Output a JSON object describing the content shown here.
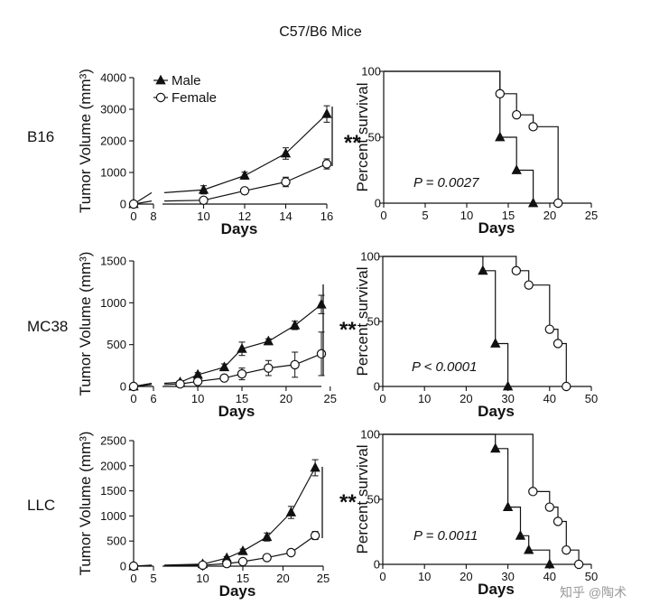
{
  "figure": {
    "title": "C57/B6 Mice",
    "watermark": "知乎 @陶术",
    "legend": [
      "Male",
      "Female"
    ]
  },
  "chart_data": [
    {
      "id": "B16-tumor",
      "type": "line",
      "row_label": "B16",
      "title": "",
      "xlabel": "Days",
      "ylabel": "Tumor Volume (mm³)",
      "break_after": 8,
      "x_ticks": [
        0,
        8,
        10,
        12,
        14,
        16
      ],
      "ylim": [
        0,
        4000
      ],
      "y_ticks": [
        0,
        1000,
        2000,
        3000,
        4000
      ],
      "significance": "**",
      "series": [
        {
          "name": "Male",
          "marker": "triangle",
          "points": [
            {
              "x": 0,
              "y": 0
            },
            {
              "x": 10,
              "y": 450
            },
            {
              "x": 12,
              "y": 900
            },
            {
              "x": 14,
              "y": 1600
            },
            {
              "x": 16,
              "y": 2850
            }
          ],
          "errors": [
            0,
            130,
            110,
            180,
            260
          ]
        },
        {
          "name": "Female",
          "marker": "circle",
          "points": [
            {
              "x": 0,
              "y": 0
            },
            {
              "x": 10,
              "y": 120
            },
            {
              "x": 12,
              "y": 420
            },
            {
              "x": 14,
              "y": 700
            },
            {
              "x": 16,
              "y": 1270
            }
          ],
          "errors": [
            0,
            40,
            60,
            150,
            160
          ]
        }
      ]
    },
    {
      "id": "B16-survival",
      "type": "line",
      "title": "",
      "xlabel": "Days",
      "ylabel": "Percent survival",
      "xlim": [
        0,
        25
      ],
      "x_ticks": [
        0,
        5,
        10,
        15,
        20,
        25
      ],
      "ylim": [
        0,
        100
      ],
      "y_ticks": [
        0,
        50,
        100
      ],
      "p_value": "P = 0.0027",
      "series": [
        {
          "name": "Male",
          "marker": "triangle",
          "steps": [
            [
              0,
              100
            ],
            [
              14,
              100
            ],
            [
              14,
              50
            ],
            [
              16,
              50
            ],
            [
              16,
              25
            ],
            [
              18,
              25
            ],
            [
              18,
              0
            ]
          ],
          "markers": [
            {
              "x": 14,
              "y": 50
            },
            {
              "x": 16,
              "y": 25
            },
            {
              "x": 18,
              "y": 0
            }
          ]
        },
        {
          "name": "Female",
          "marker": "circle",
          "steps": [
            [
              0,
              100
            ],
            [
              14,
              100
            ],
            [
              14,
              83
            ],
            [
              16,
              83
            ],
            [
              16,
              67
            ],
            [
              18,
              67
            ],
            [
              18,
              58
            ],
            [
              21,
              58
            ],
            [
              21,
              0
            ]
          ],
          "markers": [
            {
              "x": 14,
              "y": 83
            },
            {
              "x": 16,
              "y": 67
            },
            {
              "x": 18,
              "y": 58
            },
            {
              "x": 21,
              "y": 0
            }
          ]
        }
      ]
    },
    {
      "id": "MC38-tumor",
      "type": "line",
      "row_label": "MC38",
      "title": "",
      "xlabel": "Days",
      "ylabel": "Tumor Volume (mm³)",
      "break_after": 6,
      "x_ticks": [
        0,
        6,
        10,
        15,
        20,
        25
      ],
      "ylim": [
        0,
        1500
      ],
      "y_ticks": [
        0,
        500,
        1000,
        1500
      ],
      "significance": "**",
      "series": [
        {
          "name": "Male",
          "marker": "triangle",
          "points": [
            {
              "x": 0,
              "y": 0
            },
            {
              "x": 8,
              "y": 50
            },
            {
              "x": 10,
              "y": 140
            },
            {
              "x": 13,
              "y": 230
            },
            {
              "x": 15,
              "y": 450
            },
            {
              "x": 18,
              "y": 540
            },
            {
              "x": 21,
              "y": 730
            },
            {
              "x": 24,
              "y": 980
            }
          ],
          "errors": [
            0,
            15,
            25,
            40,
            80,
            30,
            50,
            110
          ]
        },
        {
          "name": "Female",
          "marker": "circle",
          "points": [
            {
              "x": 0,
              "y": 0
            },
            {
              "x": 8,
              "y": 30
            },
            {
              "x": 10,
              "y": 60
            },
            {
              "x": 13,
              "y": 100
            },
            {
              "x": 15,
              "y": 150
            },
            {
              "x": 18,
              "y": 220
            },
            {
              "x": 21,
              "y": 260
            },
            {
              "x": 24,
              "y": 390
            }
          ],
          "errors": [
            0,
            10,
            20,
            30,
            70,
            90,
            150,
            260
          ]
        }
      ]
    },
    {
      "id": "MC38-survival",
      "type": "line",
      "title": "",
      "xlabel": "Days",
      "ylabel": "Percent survival",
      "xlim": [
        0,
        50
      ],
      "x_ticks": [
        0,
        10,
        20,
        30,
        40,
        50
      ],
      "ylim": [
        0,
        100
      ],
      "y_ticks": [
        0,
        50,
        100
      ],
      "p_value": "P < 0.0001",
      "series": [
        {
          "name": "Male",
          "marker": "triangle",
          "steps": [
            [
              0,
              100
            ],
            [
              24,
              100
            ],
            [
              24,
              89
            ],
            [
              27,
              89
            ],
            [
              27,
              33
            ],
            [
              30,
              33
            ],
            [
              30,
              0
            ]
          ],
          "markers": [
            {
              "x": 24,
              "y": 89
            },
            {
              "x": 27,
              "y": 33
            },
            {
              "x": 30,
              "y": 0
            }
          ]
        },
        {
          "name": "Female",
          "marker": "circle",
          "steps": [
            [
              0,
              100
            ],
            [
              32,
              100
            ],
            [
              32,
              89
            ],
            [
              35,
              89
            ],
            [
              35,
              78
            ],
            [
              40,
              78
            ],
            [
              40,
              44
            ],
            [
              42,
              44
            ],
            [
              42,
              33
            ],
            [
              44,
              33
            ],
            [
              44,
              0
            ]
          ],
          "markers": [
            {
              "x": 32,
              "y": 89
            },
            {
              "x": 35,
              "y": 78
            },
            {
              "x": 40,
              "y": 44
            },
            {
              "x": 42,
              "y": 33
            },
            {
              "x": 44,
              "y": 0
            }
          ]
        }
      ]
    },
    {
      "id": "LLC-tumor",
      "type": "line",
      "row_label": "LLC",
      "title": "",
      "xlabel": "Days",
      "ylabel": "Tumor Volume (mm³)",
      "break_after": 5,
      "x_ticks": [
        0,
        5,
        10,
        15,
        20,
        25
      ],
      "ylim": [
        0,
        2500
      ],
      "y_ticks": [
        0,
        500,
        1000,
        1500,
        2000,
        2500
      ],
      "significance": "**",
      "series": [
        {
          "name": "Male",
          "marker": "triangle",
          "points": [
            {
              "x": 0,
              "y": 0
            },
            {
              "x": 10,
              "y": 40
            },
            {
              "x": 13,
              "y": 160
            },
            {
              "x": 15,
              "y": 300
            },
            {
              "x": 18,
              "y": 580
            },
            {
              "x": 21,
              "y": 1070
            },
            {
              "x": 24,
              "y": 1960
            }
          ],
          "errors": [
            0,
            20,
            30,
            40,
            80,
            120,
            160
          ]
        },
        {
          "name": "Female",
          "marker": "circle",
          "points": [
            {
              "x": 0,
              "y": 0
            },
            {
              "x": 10,
              "y": 20
            },
            {
              "x": 13,
              "y": 50
            },
            {
              "x": 15,
              "y": 90
            },
            {
              "x": 18,
              "y": 170
            },
            {
              "x": 21,
              "y": 270
            },
            {
              "x": 24,
              "y": 610
            }
          ],
          "errors": [
            0,
            10,
            15,
            20,
            30,
            40,
            80
          ]
        }
      ]
    },
    {
      "id": "LLC-survival",
      "type": "line",
      "title": "",
      "xlabel": "Days",
      "ylabel": "Percent survival",
      "xlim": [
        0,
        50
      ],
      "x_ticks": [
        0,
        10,
        20,
        30,
        40,
        50
      ],
      "ylim": [
        0,
        100
      ],
      "y_ticks": [
        0,
        50,
        100
      ],
      "p_value": "P = 0.0011",
      "series": [
        {
          "name": "Male",
          "marker": "triangle",
          "steps": [
            [
              0,
              100
            ],
            [
              27,
              100
            ],
            [
              27,
              89
            ],
            [
              30,
              89
            ],
            [
              30,
              44
            ],
            [
              33,
              44
            ],
            [
              33,
              22
            ],
            [
              35,
              22
            ],
            [
              35,
              11
            ],
            [
              40,
              11
            ],
            [
              40,
              0
            ]
          ],
          "markers": [
            {
              "x": 27,
              "y": 89
            },
            {
              "x": 30,
              "y": 44
            },
            {
              "x": 33,
              "y": 22
            },
            {
              "x": 35,
              "y": 11
            },
            {
              "x": 40,
              "y": 0
            }
          ]
        },
        {
          "name": "Female",
          "marker": "circle",
          "steps": [
            [
              0,
              100
            ],
            [
              36,
              100
            ],
            [
              36,
              56
            ],
            [
              40,
              56
            ],
            [
              40,
              44
            ],
            [
              42,
              44
            ],
            [
              42,
              33
            ],
            [
              44,
              33
            ],
            [
              44,
              11
            ],
            [
              47,
              11
            ],
            [
              47,
              0
            ]
          ],
          "markers": [
            {
              "x": 36,
              "y": 56
            },
            {
              "x": 40,
              "y": 44
            },
            {
              "x": 42,
              "y": 33
            },
            {
              "x": 44,
              "y": 11
            },
            {
              "x": 47,
              "y": 0
            }
          ]
        }
      ]
    }
  ]
}
